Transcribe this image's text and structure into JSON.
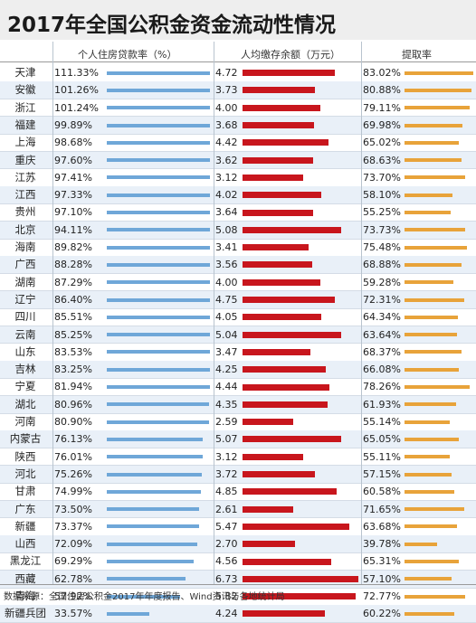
{
  "title": "2017年全国公积金资金流动性情况",
  "source": "数据来源：全国住房公积金2017年年度报告、Wind资讯与各地统计局",
  "chart_data": {
    "type": "bar",
    "title": "2017年全国公积金资金流动性情况",
    "categories": [
      "天津",
      "安徽",
      "浙江",
      "福建",
      "上海",
      "重庆",
      "江苏",
      "江西",
      "贵州",
      "北京",
      "海南",
      "广西",
      "湖南",
      "辽宁",
      "四川",
      "云南",
      "山东",
      "吉林",
      "宁夏",
      "湖北",
      "河南",
      "内蒙古",
      "陕西",
      "河北",
      "甘肃",
      "广东",
      "新疆",
      "山西",
      "黑龙江",
      "西藏",
      "青海",
      "新疆兵团"
    ],
    "series": [
      {
        "name": "个人住房贷款率（%）",
        "color": "#6fa7d8",
        "labels": [
          "111.33%",
          "101.26%",
          "101.24%",
          "99.89%",
          "98.68%",
          "97.60%",
          "97.41%",
          "97.33%",
          "97.10%",
          "94.11%",
          "89.82%",
          "88.28%",
          "87.29%",
          "86.40%",
          "85.51%",
          "85.25%",
          "83.53%",
          "83.25%",
          "81.94%",
          "80.96%",
          "80.90%",
          "76.13%",
          "76.01%",
          "75.26%",
          "74.99%",
          "73.50%",
          "73.37%",
          "72.09%",
          "69.29%",
          "62.78%",
          "57.92%",
          "33.57%"
        ],
        "values": [
          111.33,
          101.26,
          101.24,
          99.89,
          98.68,
          97.6,
          97.41,
          97.33,
          97.1,
          94.11,
          89.82,
          88.28,
          87.29,
          86.4,
          85.51,
          85.25,
          83.53,
          83.25,
          81.94,
          80.96,
          80.9,
          76.13,
          76.01,
          75.26,
          74.99,
          73.5,
          73.37,
          72.09,
          69.29,
          62.78,
          57.92,
          33.57
        ],
        "max": 111.33
      },
      {
        "name": "人均缴存余额（万元）",
        "color": "#c8161d",
        "labels": [
          "4.72",
          "3.73",
          "4.00",
          "3.68",
          "4.42",
          "3.62",
          "3.12",
          "4.02",
          "3.64",
          "5.08",
          "3.41",
          "3.56",
          "4.00",
          "4.75",
          "4.05",
          "5.04",
          "3.47",
          "4.25",
          "4.44",
          "4.35",
          "2.59",
          "5.07",
          "3.12",
          "3.72",
          "4.85",
          "2.61",
          "5.47",
          "2.70",
          "4.56",
          "6.73",
          "5.82",
          "4.24"
        ],
        "values": [
          4.72,
          3.73,
          4.0,
          3.68,
          4.42,
          3.62,
          3.12,
          4.02,
          3.64,
          5.08,
          3.41,
          3.56,
          4.0,
          4.75,
          4.05,
          5.04,
          3.47,
          4.25,
          4.44,
          4.35,
          2.59,
          5.07,
          3.12,
          3.72,
          4.85,
          2.61,
          5.47,
          2.7,
          4.56,
          6.73,
          5.82,
          4.24
        ],
        "max": 6.73
      },
      {
        "name": "提取率",
        "color": "#e8a33a",
        "labels": [
          "83.02%",
          "80.88%",
          "79.11%",
          "69.98%",
          "65.02%",
          "68.63%",
          "73.70%",
          "58.10%",
          "55.25%",
          "73.73%",
          "75.48%",
          "68.88%",
          "59.28%",
          "72.31%",
          "64.34%",
          "63.64%",
          "68.37%",
          "66.08%",
          "78.26%",
          "61.93%",
          "55.14%",
          "65.05%",
          "55.11%",
          "57.15%",
          "60.58%",
          "71.65%",
          "63.68%",
          "39.78%",
          "65.31%",
          "57.10%",
          "72.77%",
          "60.22%"
        ],
        "values": [
          83.02,
          80.88,
          79.11,
          69.98,
          65.02,
          68.63,
          73.7,
          58.1,
          55.25,
          73.73,
          75.48,
          68.88,
          59.28,
          72.31,
          64.34,
          63.64,
          68.37,
          66.08,
          78.26,
          61.93,
          55.14,
          65.05,
          55.11,
          57.15,
          60.58,
          71.65,
          63.68,
          39.78,
          65.31,
          57.1,
          72.77,
          60.22
        ],
        "max": 83.02
      }
    ]
  }
}
